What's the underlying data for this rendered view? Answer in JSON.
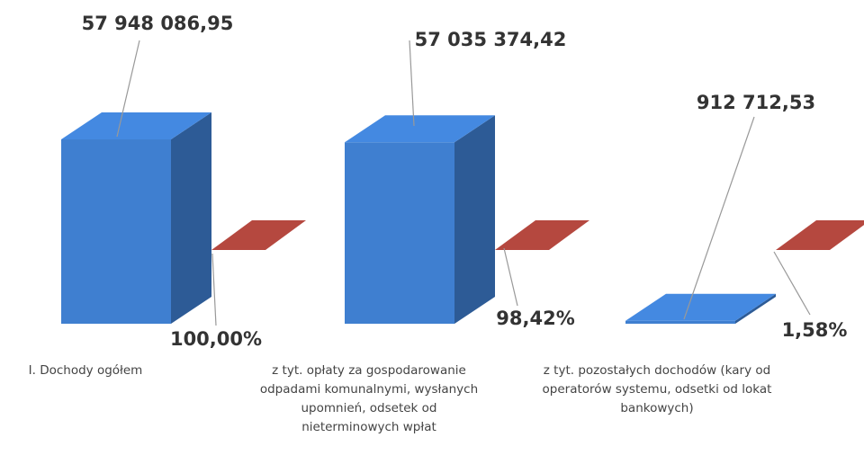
{
  "chart_data": {
    "type": "bar3d",
    "categories": [
      "I. Dochody ogółem",
      "z tyt. opłaty za gospodarowanie odpadami komunalnymi, wysłanych upomnień, odsetek od nieterminowych wpłat",
      "z tyt. pozostałych dochodów (kary od operatorów systemu, odsetki od lokat bankowych)"
    ],
    "series": [
      {
        "color": "#3f7fd0",
        "values": [
          57948086.95,
          57035374.42,
          912712.53
        ],
        "value_labels": [
          "57 948 086,95",
          "57 035 374,42",
          "912 712,53"
        ]
      },
      {
        "color": "#a8433a",
        "values": [
          100,
          98.42,
          1.58
        ],
        "value_labels": [
          "100,00%",
          "98,42%",
          "1,58%"
        ]
      }
    ]
  }
}
